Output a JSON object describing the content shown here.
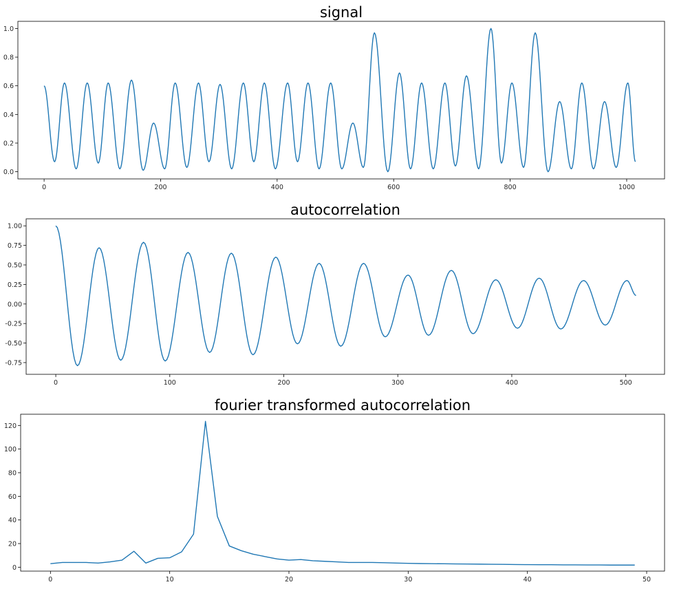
{
  "colors": {
    "line": "#1f77b4"
  },
  "chart_data": [
    {
      "type": "line",
      "title": "signal",
      "xlim": [
        -45,
        1065
      ],
      "ylim": [
        -0.05,
        1.05
      ],
      "xticks": [
        0,
        200,
        400,
        600,
        800,
        1000
      ],
      "yticks": [
        0.0,
        0.2,
        0.4,
        0.6,
        0.8,
        1.0
      ],
      "ytick_decimals": 1,
      "grid": false,
      "series": [
        {
          "peaks": [
            {
              "x": 0,
              "y": 0.6
            },
            {
              "x": 35,
              "y": 0.62
            },
            {
              "x": 74,
              "y": 0.62
            },
            {
              "x": 110,
              "y": 0.62
            },
            {
              "x": 150,
              "y": 0.64
            },
            {
              "x": 188,
              "y": 0.34
            },
            {
              "x": 225,
              "y": 0.62
            },
            {
              "x": 265,
              "y": 0.62
            },
            {
              "x": 302,
              "y": 0.61
            },
            {
              "x": 342,
              "y": 0.62
            },
            {
              "x": 378,
              "y": 0.62
            },
            {
              "x": 418,
              "y": 0.62
            },
            {
              "x": 453,
              "y": 0.62
            },
            {
              "x": 492,
              "y": 0.62
            },
            {
              "x": 530,
              "y": 0.34
            },
            {
              "x": 567,
              "y": 0.97
            },
            {
              "x": 610,
              "y": 0.69
            },
            {
              "x": 648,
              "y": 0.62
            },
            {
              "x": 688,
              "y": 0.62
            },
            {
              "x": 725,
              "y": 0.67
            },
            {
              "x": 767,
              "y": 1.0
            },
            {
              "x": 803,
              "y": 0.62
            },
            {
              "x": 843,
              "y": 0.97
            },
            {
              "x": 885,
              "y": 0.49
            },
            {
              "x": 923,
              "y": 0.62
            },
            {
              "x": 962,
              "y": 0.49
            },
            {
              "x": 1002,
              "y": 0.62
            }
          ],
          "troughs": [
            {
              "x": 18,
              "y": 0.07
            },
            {
              "x": 55,
              "y": 0.02
            },
            {
              "x": 93,
              "y": 0.06
            },
            {
              "x": 130,
              "y": 0.02
            },
            {
              "x": 170,
              "y": 0.01
            },
            {
              "x": 207,
              "y": 0.02
            },
            {
              "x": 245,
              "y": 0.03
            },
            {
              "x": 283,
              "y": 0.07
            },
            {
              "x": 322,
              "y": 0.02
            },
            {
              "x": 360,
              "y": 0.07
            },
            {
              "x": 397,
              "y": 0.02
            },
            {
              "x": 435,
              "y": 0.07
            },
            {
              "x": 472,
              "y": 0.02
            },
            {
              "x": 511,
              "y": 0.02
            },
            {
              "x": 548,
              "y": 0.03
            },
            {
              "x": 590,
              "y": 0.0
            },
            {
              "x": 629,
              "y": 0.02
            },
            {
              "x": 668,
              "y": 0.02
            },
            {
              "x": 706,
              "y": 0.04
            },
            {
              "x": 746,
              "y": 0.02
            },
            {
              "x": 785,
              "y": 0.06
            },
            {
              "x": 823,
              "y": 0.03
            },
            {
              "x": 865,
              "y": 0.0
            },
            {
              "x": 905,
              "y": 0.02
            },
            {
              "x": 943,
              "y": 0.02
            },
            {
              "x": 982,
              "y": 0.03
            },
            {
              "x": 1015,
              "y": 0.07
            }
          ]
        }
      ]
    },
    {
      "type": "line",
      "title": "autocorrelation",
      "xlim": [
        -26,
        534
      ],
      "ylim": [
        -0.9,
        1.09
      ],
      "xticks": [
        0,
        100,
        200,
        300,
        400,
        500
      ],
      "yticks": [
        -0.75,
        -0.5,
        -0.25,
        0.0,
        0.25,
        0.5,
        0.75,
        1.0
      ],
      "ytick_decimals": 2,
      "grid": false,
      "series": [
        {
          "peaks": [
            {
              "x": 0,
              "y": 1.0
            },
            {
              "x": 38,
              "y": 0.72
            },
            {
              "x": 77,
              "y": 0.79
            },
            {
              "x": 116,
              "y": 0.66
            },
            {
              "x": 154,
              "y": 0.65
            },
            {
              "x": 193,
              "y": 0.6
            },
            {
              "x": 231,
              "y": 0.52
            },
            {
              "x": 270,
              "y": 0.52
            },
            {
              "x": 309,
              "y": 0.37
            },
            {
              "x": 347,
              "y": 0.43
            },
            {
              "x": 386,
              "y": 0.31
            },
            {
              "x": 424,
              "y": 0.33
            },
            {
              "x": 463,
              "y": 0.3
            },
            {
              "x": 501,
              "y": 0.3
            }
          ],
          "troughs": [
            {
              "x": 19,
              "y": -0.79
            },
            {
              "x": 57,
              "y": -0.72
            },
            {
              "x": 96,
              "y": -0.73
            },
            {
              "x": 135,
              "y": -0.62
            },
            {
              "x": 173,
              "y": -0.65
            },
            {
              "x": 212,
              "y": -0.51
            },
            {
              "x": 250,
              "y": -0.54
            },
            {
              "x": 289,
              "y": -0.42
            },
            {
              "x": 327,
              "y": -0.4
            },
            {
              "x": 366,
              "y": -0.38
            },
            {
              "x": 405,
              "y": -0.31
            },
            {
              "x": 443,
              "y": -0.32
            },
            {
              "x": 482,
              "y": -0.27
            }
          ],
          "end": {
            "x": 509,
            "y": 0.11
          }
        }
      ]
    },
    {
      "type": "line",
      "title": "fourier transformed autocorrelation",
      "xlim": [
        -2.5,
        51.5
      ],
      "ylim": [
        -3.3,
        129.5
      ],
      "xticks": [
        0,
        10,
        20,
        30,
        40,
        50
      ],
      "yticks": [
        0,
        20,
        40,
        60,
        80,
        100,
        120
      ],
      "ytick_decimals": 0,
      "grid": false,
      "series": [
        {
          "x": [
            0,
            1,
            2,
            3,
            4,
            5,
            6,
            7,
            8,
            9,
            10,
            11,
            12,
            13,
            14,
            15,
            16,
            17,
            18,
            19,
            20,
            21,
            22,
            23,
            24,
            25,
            26,
            27,
            28,
            29,
            30,
            31,
            32,
            33,
            34,
            35,
            36,
            37,
            38,
            39,
            40,
            41,
            42,
            43,
            44,
            45,
            46,
            47,
            48,
            49
          ],
          "y": [
            3,
            4,
            4,
            4,
            3.5,
            4.5,
            6,
            13.5,
            3.5,
            7.5,
            8,
            13,
            28,
            123.5,
            43,
            18,
            14,
            11,
            9,
            7,
            6,
            6.5,
            5.5,
            5,
            4.5,
            4,
            4,
            4,
            3.8,
            3.5,
            3.3,
            3.1,
            3,
            2.9,
            2.8,
            2.7,
            2.6,
            2.5,
            2.4,
            2.3,
            2.2,
            2.1,
            2.1,
            2,
            2,
            1.9,
            1.9,
            1.8,
            1.8,
            1.8
          ]
        }
      ]
    }
  ]
}
